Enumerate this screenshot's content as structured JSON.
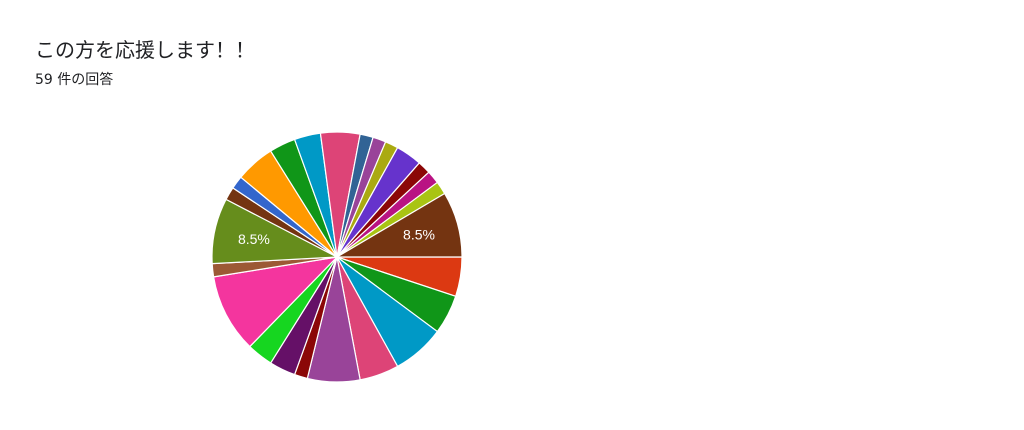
{
  "question": {
    "title": "この方を応援します！！",
    "response_count": "59 件の回答"
  },
  "chart_data": {
    "type": "pie",
    "total": 59,
    "direction": "clockwise",
    "legend": "none",
    "values": [
      3,
      3,
      4,
      3,
      4,
      1,
      2,
      2,
      6,
      1,
      5,
      1,
      1,
      3,
      2,
      2,
      3,
      1,
      1,
      1,
      2,
      1,
      1,
      1,
      5
    ],
    "colors": [
      "#dc3912",
      "#109618",
      "#0099c6",
      "#dd4477",
      "#994499",
      "#8b0707",
      "#651067",
      "#16d620",
      "#f4359e",
      "#9c5935",
      "#668d1c",
      "#743411",
      "#3366cc",
      "#ff9900",
      "#109618",
      "#0099c6",
      "#dd4477",
      "#316395",
      "#994499",
      "#aaaa11",
      "#6633cc",
      "#8b0707",
      "#b91383",
      "#a9c413",
      "#743411"
    ],
    "data_labels": {
      "10": "8.5%",
      "24": "8.5%"
    }
  }
}
